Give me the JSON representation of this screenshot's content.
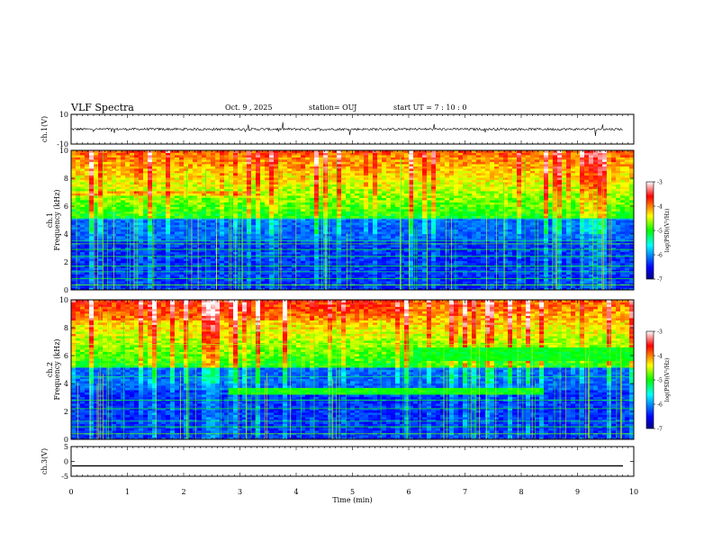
{
  "header": {
    "title": "VLF Spectra",
    "date": "Oct. 9 , 2025",
    "station": "station= OUJ",
    "start": "start UT =  7 : 10 : 0"
  },
  "chart_data": [
    {
      "type": "line",
      "name": "ch1-waveform",
      "ylabel": "ch.1(V)",
      "ylim": [
        -10,
        10
      ],
      "yticks": [
        "10",
        "-10"
      ],
      "baseline": 0,
      "xlim": [
        0,
        10
      ]
    },
    {
      "type": "heatmap",
      "name": "ch1-spectrogram",
      "ylabel": "ch.1 Frequency (kHz)",
      "ylim": [
        0,
        10
      ],
      "yticks": [
        "0",
        "2",
        "4",
        "6",
        "8",
        "10"
      ],
      "xlim": [
        0,
        10
      ],
      "colorbar": {
        "label": "log(PSD)(V²/Hz)",
        "range": [
          -7,
          -3
        ],
        "ticks": [
          "-3",
          "-4",
          "-5",
          "-6",
          "-7"
        ]
      }
    },
    {
      "type": "heatmap",
      "name": "ch2-spectrogram",
      "ylabel": "ch.2 Frequency (kHz)",
      "ylim": [
        0,
        10
      ],
      "yticks": [
        "0",
        "2",
        "4",
        "6",
        "8",
        "10"
      ],
      "xlim": [
        0,
        10
      ],
      "colorbar": {
        "label": "log(PSD)(V²/Hz)",
        "range": [
          -7,
          -3
        ],
        "ticks": [
          "-3",
          "-4",
          "-5",
          "-6",
          "-7"
        ]
      }
    },
    {
      "type": "line",
      "name": "ch3-waveform",
      "ylabel": "ch.3(V)",
      "ylim": [
        -5,
        5
      ],
      "yticks": [
        "5",
        "0",
        "-5"
      ],
      "baseline": -1.5,
      "xlim": [
        0,
        10
      ]
    }
  ],
  "xaxis": {
    "label": "Time (min)",
    "ticks": [
      "0",
      "1",
      "2",
      "3",
      "4",
      "5",
      "6",
      "7",
      "8",
      "9",
      "10"
    ]
  }
}
